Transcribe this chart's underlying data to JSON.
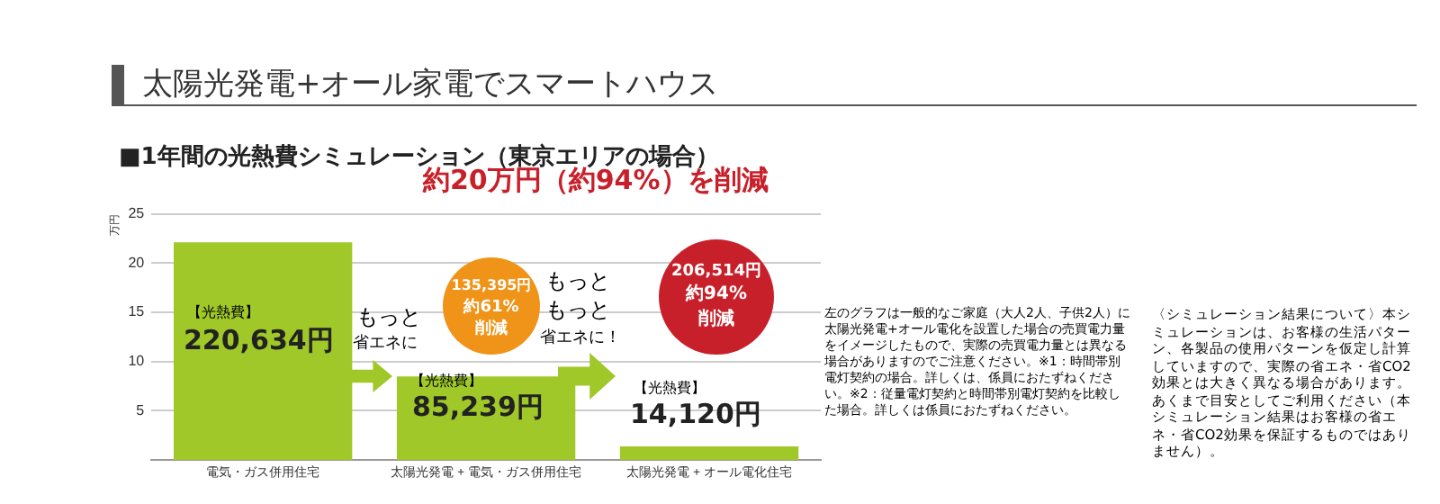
{
  "chart_data": {
    "type": "bar",
    "title": "太陽光発電+オール家電でスマートハウス",
    "subtitle": "■1年間の光熱費シミュレーション（東京エリアの場合）",
    "ylabel": "万円",
    "categories": [
      "電気・ガス併用住宅",
      "太陽光発電 + 電気・ガス併用住宅",
      "太陽光発電 + オール電化住宅"
    ],
    "values": [
      22.1,
      8.5,
      1.4
    ],
    "color": "#a0c828",
    "ylim": [
      0,
      25
    ],
    "yticks": [
      5,
      10,
      15,
      20,
      25
    ],
    "grid": "y",
    "annotations": [
      "約20万円（約94%）を削減",
      "135,395円",
      "約61%",
      "削減",
      "206,514円",
      "約94%",
      "削減",
      "もっと",
      "省エネに",
      "もっと",
      "もっと",
      "省エネに！",
      "【光熱費】",
      "【光熱費】",
      "【光熱費】",
      "220,634円",
      "85,239円",
      "14,120円",
      "左のグラフは一般的なご家庭（大人2人、子供2人）に太陽光発電+オール電化を設置した場合の売買電力量をイメージしたもので、実際の売買電力量とは異なる場合がありますのでご注意ください。※1：時間帯別電灯契約の場合。詳しくは、係員におたずねください。※2：従量電灯契約と時間帯別電灯契約を比較した場合。詳しくは係員におたずねください。",
      "〈シミュレーション結果について〉本シミュレーションは、お客様の生活パターン、各製品の使用パターンを仮定し計算していますので、実際の省エネ・省CO2効果とは大きく異なる場合があります。あくまで目安としてご利用ください（本シミュレーション結果はお客様の省エネ・省CO2効果を保証するものではありません）。"
    ]
  }
}
